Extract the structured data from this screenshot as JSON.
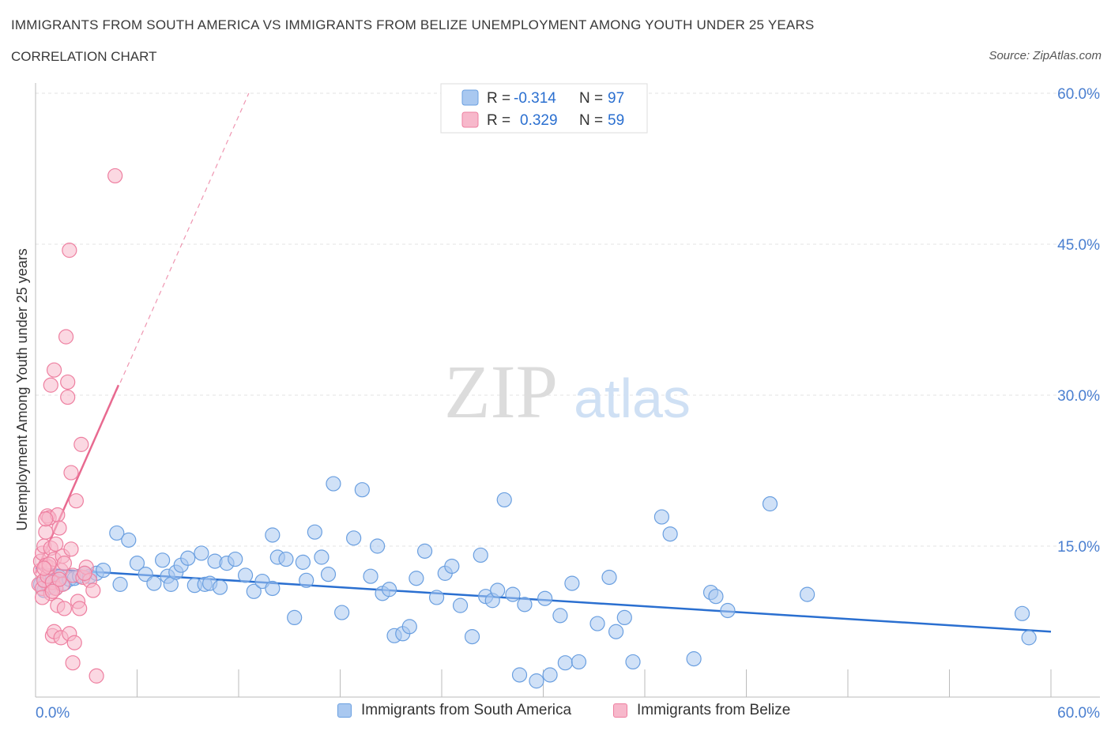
{
  "header": {
    "title": "IMMIGRANTS FROM SOUTH AMERICA VS IMMIGRANTS FROM BELIZE UNEMPLOYMENT AMONG YOUTH UNDER 25 YEARS",
    "subtitle": "CORRELATION CHART",
    "source": "Source: ZipAtlas.com"
  },
  "watermark": {
    "zip": "ZIP",
    "atlas": "atlas"
  },
  "colors": {
    "blue_fill": "#a9c8f0",
    "blue_stroke": "#6a9fe0",
    "blue_line": "#2a6fd0",
    "pink_fill": "#f7b8cb",
    "pink_stroke": "#ee7fa0",
    "pink_line": "#e86a90",
    "axis_label": "#4a7fd0",
    "grid": "#e3e3e3"
  },
  "chart_data": {
    "type": "scatter",
    "title": "IMMIGRANTS FROM SOUTH AMERICA VS IMMIGRANTS FROM BELIZE UNEMPLOYMENT AMONG YOUTH UNDER 25 YEARS",
    "xlabel": "",
    "ylabel": "Unemployment Among Youth under 25 years",
    "xlim": [
      0,
      60
    ],
    "ylim": [
      0,
      60
    ],
    "x_tick_labels": [
      "0.0%",
      "60.0%"
    ],
    "y_ticks": [
      15,
      30,
      45,
      60
    ],
    "y_tick_labels": [
      "15.0%",
      "30.0%",
      "45.0%",
      "60.0%"
    ],
    "legend": [
      {
        "name": "Immigrants from South America",
        "r_label": "R =",
        "r": "-0.314",
        "n_label": "N =",
        "n": "97"
      },
      {
        "name": "Immigrants from Belize",
        "r_label": "R =",
        "r": "0.329",
        "n_label": "N =",
        "n": "59"
      }
    ],
    "series": [
      {
        "name": "Immigrants from South America",
        "trend": {
          "x": [
            0,
            60
          ],
          "y": [
            12.8,
            6.5
          ],
          "style": "solid"
        },
        "points": [
          [
            0.3,
            11.2
          ],
          [
            0.5,
            10.6
          ],
          [
            0.6,
            11.4
          ],
          [
            0.8,
            10.9
          ],
          [
            1.0,
            11.8
          ],
          [
            1.2,
            11.6
          ],
          [
            1.4,
            11.9
          ],
          [
            1.7,
            11.3
          ],
          [
            2.0,
            11.7
          ],
          [
            2.3,
            11.8
          ],
          [
            2.6,
            12.0
          ],
          [
            2.9,
            12.3
          ],
          [
            3.2,
            12.0
          ],
          [
            3.6,
            12.3
          ],
          [
            4.0,
            12.6
          ],
          [
            5.0,
            11.2
          ],
          [
            4.8,
            16.3
          ],
          [
            5.5,
            15.6
          ],
          [
            6.0,
            13.3
          ],
          [
            6.5,
            12.2
          ],
          [
            7.0,
            11.3
          ],
          [
            7.5,
            13.6
          ],
          [
            7.8,
            12.0
          ],
          [
            8.0,
            11.2
          ],
          [
            8.3,
            12.4
          ],
          [
            8.6,
            13.1
          ],
          [
            9.0,
            13.8
          ],
          [
            9.4,
            11.1
          ],
          [
            9.8,
            14.3
          ],
          [
            10.0,
            11.2
          ],
          [
            10.3,
            11.3
          ],
          [
            10.6,
            13.5
          ],
          [
            10.9,
            10.9
          ],
          [
            11.3,
            13.3
          ],
          [
            11.8,
            13.7
          ],
          [
            12.4,
            12.1
          ],
          [
            12.9,
            10.5
          ],
          [
            13.4,
            11.5
          ],
          [
            14.0,
            16.1
          ],
          [
            14.3,
            13.9
          ],
          [
            14.8,
            13.7
          ],
          [
            15.3,
            7.9
          ],
          [
            15.8,
            13.4
          ],
          [
            16.5,
            16.4
          ],
          [
            16.9,
            13.9
          ],
          [
            17.3,
            12.2
          ],
          [
            17.6,
            21.2
          ],
          [
            18.1,
            8.4
          ],
          [
            18.8,
            15.8
          ],
          [
            19.3,
            20.6
          ],
          [
            19.8,
            12.0
          ],
          [
            20.2,
            15.0
          ],
          [
            20.5,
            10.3
          ],
          [
            20.9,
            10.7
          ],
          [
            21.2,
            6.1
          ],
          [
            21.7,
            6.3
          ],
          [
            22.1,
            7.0
          ],
          [
            22.5,
            11.8
          ],
          [
            23.0,
            14.5
          ],
          [
            23.7,
            9.9
          ],
          [
            24.2,
            12.3
          ],
          [
            24.6,
            13.0
          ],
          [
            25.1,
            9.1
          ],
          [
            25.8,
            6.0
          ],
          [
            26.3,
            14.1
          ],
          [
            26.6,
            10.0
          ],
          [
            27.0,
            9.6
          ],
          [
            27.3,
            10.6
          ],
          [
            27.7,
            19.6
          ],
          [
            28.2,
            10.2
          ],
          [
            28.9,
            9.2
          ],
          [
            28.6,
            2.2
          ],
          [
            29.6,
            1.6
          ],
          [
            30.1,
            9.8
          ],
          [
            30.4,
            2.2
          ],
          [
            31.0,
            8.1
          ],
          [
            31.3,
            3.4
          ],
          [
            31.7,
            11.3
          ],
          [
            32.1,
            3.5
          ],
          [
            33.2,
            7.3
          ],
          [
            33.9,
            11.9
          ],
          [
            34.3,
            6.5
          ],
          [
            34.8,
            7.9
          ],
          [
            35.3,
            3.5
          ],
          [
            37.0,
            17.9
          ],
          [
            37.5,
            16.2
          ],
          [
            38.9,
            3.8
          ],
          [
            39.9,
            10.4
          ],
          [
            40.2,
            10.0
          ],
          [
            40.9,
            8.6
          ],
          [
            43.4,
            19.2
          ],
          [
            45.6,
            10.2
          ],
          [
            58.3,
            8.3
          ],
          [
            58.7,
            5.9
          ],
          [
            16.0,
            11.6
          ],
          [
            14.0,
            10.8
          ],
          [
            1.2,
            10.8
          ]
        ]
      },
      {
        "name": "Immigrants from Belize",
        "trend": {
          "x": [
            0,
            4.9
          ],
          "y": [
            12.3,
            31.0
          ],
          "style": "solid"
        },
        "trend_extended": {
          "x": [
            0,
            12.6
          ],
          "y": [
            12.3,
            60.0
          ],
          "style": "dashed"
        },
        "points": [
          [
            0.2,
            11.2
          ],
          [
            0.3,
            12.6
          ],
          [
            0.3,
            13.5
          ],
          [
            0.4,
            14.3
          ],
          [
            0.4,
            10.8
          ],
          [
            0.5,
            11.6
          ],
          [
            0.5,
            15.0
          ],
          [
            0.6,
            13.1
          ],
          [
            0.6,
            16.4
          ],
          [
            0.7,
            12.0
          ],
          [
            0.7,
            18.0
          ],
          [
            0.8,
            17.8
          ],
          [
            0.8,
            12.9
          ],
          [
            0.9,
            10.3
          ],
          [
            0.9,
            14.8
          ],
          [
            1.0,
            11.4
          ],
          [
            1.0,
            6.1
          ],
          [
            1.1,
            6.5
          ],
          [
            1.1,
            13.7
          ],
          [
            1.2,
            15.2
          ],
          [
            1.2,
            10.8
          ],
          [
            1.3,
            9.1
          ],
          [
            1.3,
            18.1
          ],
          [
            1.4,
            16.8
          ],
          [
            1.5,
            12.6
          ],
          [
            1.5,
            5.9
          ],
          [
            1.6,
            14.0
          ],
          [
            1.6,
            11.2
          ],
          [
            1.7,
            8.8
          ],
          [
            1.7,
            13.3
          ],
          [
            1.8,
            35.8
          ],
          [
            1.9,
            29.8
          ],
          [
            1.9,
            31.3
          ],
          [
            2.0,
            44.4
          ],
          [
            2.0,
            6.3
          ],
          [
            2.1,
            22.3
          ],
          [
            2.1,
            14.7
          ],
          [
            2.2,
            12.1
          ],
          [
            2.2,
            3.4
          ],
          [
            2.3,
            5.4
          ],
          [
            2.4,
            19.5
          ],
          [
            2.5,
            9.5
          ],
          [
            2.6,
            8.8
          ],
          [
            2.7,
            25.1
          ],
          [
            2.8,
            11.9
          ],
          [
            3.0,
            12.9
          ],
          [
            3.2,
            11.6
          ],
          [
            3.4,
            10.6
          ],
          [
            3.6,
            2.1
          ],
          [
            4.7,
            51.8
          ],
          [
            0.9,
            31.0
          ],
          [
            1.1,
            32.5
          ],
          [
            0.6,
            17.7
          ],
          [
            0.4,
            9.9
          ],
          [
            1.4,
            11.7
          ],
          [
            0.8,
            13.2
          ],
          [
            0.5,
            12.8
          ],
          [
            1.0,
            10.5
          ],
          [
            2.9,
            12.3
          ]
        ]
      }
    ]
  }
}
